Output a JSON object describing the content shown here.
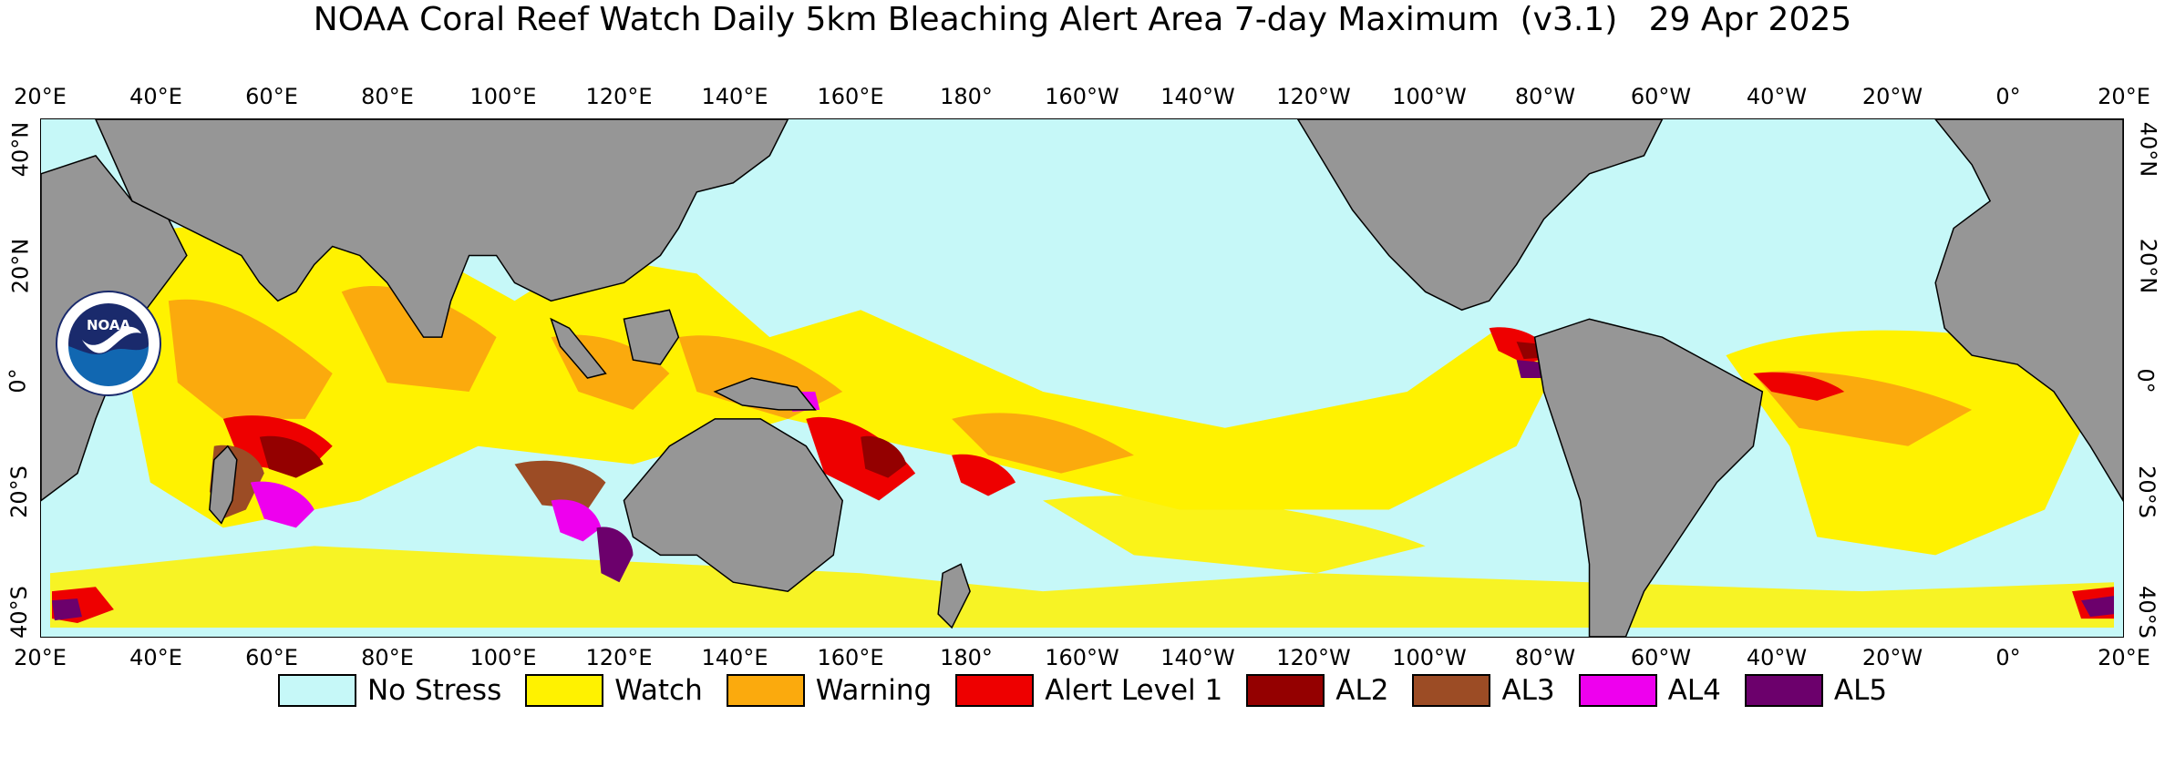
{
  "title": "NOAA Coral Reef Watch Daily 5km Bleaching Alert Area 7-day Maximum  (v3.1)   29 Apr 2025",
  "longitude_ticks": [
    "20°E",
    "40°E",
    "60°E",
    "80°E",
    "100°E",
    "120°E",
    "140°E",
    "160°E",
    "180°",
    "160°W",
    "140°W",
    "120°W",
    "100°W",
    "80°W",
    "60°W",
    "40°W",
    "20°W",
    "0°",
    "20°E"
  ],
  "latitude_ticks": [
    "40°N",
    "20°N",
    "0°",
    "20°S",
    "40°S"
  ],
  "logo": {
    "text": "NOAA",
    "ring_text": "NATIONAL OCEANIC AND ATMOSPHERIC ADMINISTRATION · U.S. DEPARTMENT OF COMMERCE"
  },
  "legend": [
    {
      "label": "No Stress",
      "color": "#c6f8f8"
    },
    {
      "label": "Watch",
      "color": "#fff200"
    },
    {
      "label": "Warning",
      "color": "#fbaa0d"
    },
    {
      "label": "Alert Level 1",
      "color": "#ee0000"
    },
    {
      "label": "AL2",
      "color": "#940000"
    },
    {
      "label": "AL3",
      "color": "#9c4c25"
    },
    {
      "label": "AL4",
      "color": "#ee00ee"
    },
    {
      "label": "AL5",
      "color": "#6c006c"
    }
  ],
  "colors": {
    "land": "#969696",
    "ocean": "#c6f8f8"
  }
}
